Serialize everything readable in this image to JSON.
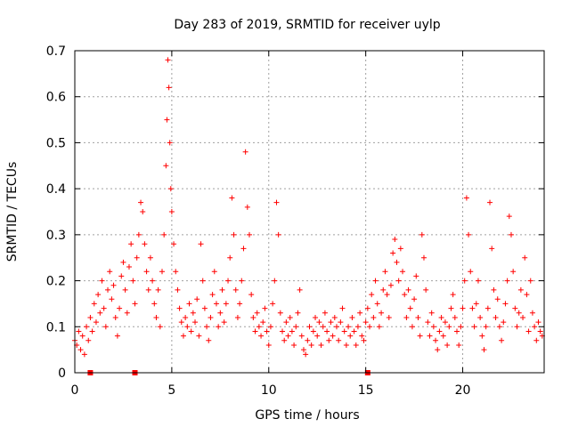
{
  "chart_data": {
    "type": "scatter",
    "title": "Day 283 of 2019, SRMTID for receiver uylp",
    "xlabel": "GPS time / hours",
    "ylabel": "SRMTID / TECUs",
    "xlim": [
      0,
      24.2
    ],
    "ylim": [
      0,
      0.7
    ],
    "x_ticks": [
      0,
      5,
      10,
      15,
      20
    ],
    "x_tick_labels": [
      "0",
      "5",
      "10",
      "15",
      "20"
    ],
    "y_ticks": [
      0,
      0.1,
      0.2,
      0.3,
      0.4,
      0.5,
      0.6,
      0.7
    ],
    "y_tick_labels": [
      "0",
      "0.1",
      "0.2",
      "0.3",
      "0.4",
      "0.5",
      "0.6",
      "0.7"
    ],
    "grid": true,
    "marker": "plus",
    "color": "#ff0000",
    "series": [
      {
        "name": "SRMTID",
        "points": [
          [
            0.0,
            0.07
          ],
          [
            0.1,
            0.06
          ],
          [
            0.2,
            0.09
          ],
          [
            0.3,
            0.05
          ],
          [
            0.4,
            0.08
          ],
          [
            0.5,
            0.04
          ],
          [
            0.6,
            0.1
          ],
          [
            0.7,
            0.07
          ],
          [
            0.8,
            0.12
          ],
          [
            0.9,
            0.09
          ],
          [
            1.0,
            0.15
          ],
          [
            1.1,
            0.11
          ],
          [
            1.2,
            0.17
          ],
          [
            1.3,
            0.13
          ],
          [
            1.4,
            0.2
          ],
          [
            1.5,
            0.14
          ],
          [
            1.6,
            0.1
          ],
          [
            1.7,
            0.18
          ],
          [
            1.8,
            0.22
          ],
          [
            1.9,
            0.16
          ],
          [
            2.0,
            0.19
          ],
          [
            2.1,
            0.12
          ],
          [
            2.2,
            0.08
          ],
          [
            2.3,
            0.14
          ],
          [
            2.4,
            0.21
          ],
          [
            2.5,
            0.24
          ],
          [
            2.6,
            0.18
          ],
          [
            2.7,
            0.13
          ],
          [
            2.8,
            0.23
          ],
          [
            2.9,
            0.28
          ],
          [
            3.0,
            0.2
          ],
          [
            3.1,
            0.15
          ],
          [
            3.2,
            0.25
          ],
          [
            3.3,
            0.3
          ],
          [
            3.4,
            0.37
          ],
          [
            3.5,
            0.35
          ],
          [
            3.6,
            0.28
          ],
          [
            3.7,
            0.22
          ],
          [
            3.8,
            0.18
          ],
          [
            3.9,
            0.25
          ],
          [
            4.0,
            0.2
          ],
          [
            4.1,
            0.15
          ],
          [
            4.2,
            0.12
          ],
          [
            4.3,
            0.18
          ],
          [
            4.4,
            0.1
          ],
          [
            4.5,
            0.22
          ],
          [
            4.6,
            0.3
          ],
          [
            4.7,
            0.45
          ],
          [
            4.75,
            0.55
          ],
          [
            4.8,
            0.68
          ],
          [
            4.85,
            0.62
          ],
          [
            4.9,
            0.5
          ],
          [
            4.95,
            0.4
          ],
          [
            5.0,
            0.35
          ],
          [
            5.1,
            0.28
          ],
          [
            5.2,
            0.22
          ],
          [
            5.3,
            0.18
          ],
          [
            5.4,
            0.14
          ],
          [
            5.5,
            0.11
          ],
          [
            5.6,
            0.08
          ],
          [
            5.7,
            0.12
          ],
          [
            5.8,
            0.1
          ],
          [
            5.9,
            0.15
          ],
          [
            6.0,
            0.09
          ],
          [
            6.1,
            0.13
          ],
          [
            6.2,
            0.11
          ],
          [
            6.3,
            0.16
          ],
          [
            6.4,
            0.08
          ],
          [
            6.5,
            0.28
          ],
          [
            6.6,
            0.2
          ],
          [
            6.7,
            0.14
          ],
          [
            6.8,
            0.1
          ],
          [
            6.9,
            0.07
          ],
          [
            7.0,
            0.12
          ],
          [
            7.1,
            0.17
          ],
          [
            7.2,
            0.22
          ],
          [
            7.3,
            0.15
          ],
          [
            7.4,
            0.1
          ],
          [
            7.5,
            0.13
          ],
          [
            7.6,
            0.18
          ],
          [
            7.7,
            0.11
          ],
          [
            7.8,
            0.15
          ],
          [
            7.9,
            0.2
          ],
          [
            8.0,
            0.25
          ],
          [
            8.1,
            0.38
          ],
          [
            8.2,
            0.3
          ],
          [
            8.3,
            0.18
          ],
          [
            8.4,
            0.12
          ],
          [
            8.5,
            0.15
          ],
          [
            8.6,
            0.2
          ],
          [
            8.7,
            0.27
          ],
          [
            8.8,
            0.48
          ],
          [
            8.9,
            0.36
          ],
          [
            9.0,
            0.3
          ],
          [
            9.1,
            0.17
          ],
          [
            9.2,
            0.12
          ],
          [
            9.3,
            0.09
          ],
          [
            9.4,
            0.13
          ],
          [
            9.5,
            0.1
          ],
          [
            9.6,
            0.08
          ],
          [
            9.7,
            0.11
          ],
          [
            9.8,
            0.14
          ],
          [
            9.9,
            0.09
          ],
          [
            10.0,
            0.06
          ],
          [
            10.1,
            0.1
          ],
          [
            10.2,
            0.15
          ],
          [
            10.3,
            0.2
          ],
          [
            10.4,
            0.37
          ],
          [
            10.5,
            0.3
          ],
          [
            10.6,
            0.13
          ],
          [
            10.7,
            0.09
          ],
          [
            10.8,
            0.07
          ],
          [
            10.9,
            0.11
          ],
          [
            11.0,
            0.08
          ],
          [
            11.1,
            0.12
          ],
          [
            11.2,
            0.09
          ],
          [
            11.3,
            0.06
          ],
          [
            11.4,
            0.1
          ],
          [
            11.5,
            0.13
          ],
          [
            11.6,
            0.18
          ],
          [
            11.7,
            0.08
          ],
          [
            11.8,
            0.05
          ],
          [
            11.9,
            0.04
          ],
          [
            12.0,
            0.07
          ],
          [
            12.1,
            0.1
          ],
          [
            12.2,
            0.06
          ],
          [
            12.3,
            0.09
          ],
          [
            12.4,
            0.12
          ],
          [
            12.5,
            0.08
          ],
          [
            12.6,
            0.11
          ],
          [
            12.7,
            0.06
          ],
          [
            12.8,
            0.1
          ],
          [
            12.9,
            0.13
          ],
          [
            13.0,
            0.09
          ],
          [
            13.1,
            0.07
          ],
          [
            13.2,
            0.11
          ],
          [
            13.3,
            0.08
          ],
          [
            13.4,
            0.12
          ],
          [
            13.5,
            0.1
          ],
          [
            13.6,
            0.07
          ],
          [
            13.7,
            0.11
          ],
          [
            13.8,
            0.14
          ],
          [
            13.9,
            0.09
          ],
          [
            14.0,
            0.06
          ],
          [
            14.1,
            0.1
          ],
          [
            14.2,
            0.08
          ],
          [
            14.3,
            0.12
          ],
          [
            14.4,
            0.09
          ],
          [
            14.5,
            0.06
          ],
          [
            14.6,
            0.1
          ],
          [
            14.7,
            0.13
          ],
          [
            14.8,
            0.08
          ],
          [
            14.9,
            0.07
          ],
          [
            15.0,
            0.11
          ],
          [
            15.1,
            0.14
          ],
          [
            15.2,
            0.1
          ],
          [
            15.3,
            0.17
          ],
          [
            15.4,
            0.12
          ],
          [
            15.5,
            0.2
          ],
          [
            15.6,
            0.15
          ],
          [
            15.7,
            0.1
          ],
          [
            15.8,
            0.13
          ],
          [
            15.9,
            0.18
          ],
          [
            16.0,
            0.22
          ],
          [
            16.1,
            0.17
          ],
          [
            16.2,
            0.12
          ],
          [
            16.3,
            0.19
          ],
          [
            16.4,
            0.26
          ],
          [
            16.5,
            0.29
          ],
          [
            16.6,
            0.24
          ],
          [
            16.7,
            0.2
          ],
          [
            16.8,
            0.27
          ],
          [
            16.9,
            0.22
          ],
          [
            17.0,
            0.17
          ],
          [
            17.1,
            0.12
          ],
          [
            17.2,
            0.18
          ],
          [
            17.3,
            0.14
          ],
          [
            17.4,
            0.1
          ],
          [
            17.5,
            0.16
          ],
          [
            17.6,
            0.21
          ],
          [
            17.7,
            0.12
          ],
          [
            17.8,
            0.08
          ],
          [
            17.9,
            0.3
          ],
          [
            18.0,
            0.25
          ],
          [
            18.1,
            0.18
          ],
          [
            18.2,
            0.11
          ],
          [
            18.3,
            0.08
          ],
          [
            18.4,
            0.13
          ],
          [
            18.5,
            0.1
          ],
          [
            18.6,
            0.07
          ],
          [
            18.7,
            0.05
          ],
          [
            18.8,
            0.09
          ],
          [
            18.9,
            0.12
          ],
          [
            19.0,
            0.08
          ],
          [
            19.1,
            0.11
          ],
          [
            19.2,
            0.06
          ],
          [
            19.3,
            0.1
          ],
          [
            19.4,
            0.14
          ],
          [
            19.5,
            0.17
          ],
          [
            19.6,
            0.12
          ],
          [
            19.7,
            0.09
          ],
          [
            19.8,
            0.06
          ],
          [
            19.9,
            0.1
          ],
          [
            20.0,
            0.14
          ],
          [
            20.1,
            0.2
          ],
          [
            20.2,
            0.38
          ],
          [
            20.3,
            0.3
          ],
          [
            20.4,
            0.22
          ],
          [
            20.5,
            0.14
          ],
          [
            20.6,
            0.1
          ],
          [
            20.7,
            0.15
          ],
          [
            20.8,
            0.2
          ],
          [
            20.9,
            0.12
          ],
          [
            21.0,
            0.08
          ],
          [
            21.1,
            0.05
          ],
          [
            21.2,
            0.1
          ],
          [
            21.3,
            0.14
          ],
          [
            21.4,
            0.37
          ],
          [
            21.5,
            0.27
          ],
          [
            21.6,
            0.18
          ],
          [
            21.7,
            0.12
          ],
          [
            21.8,
            0.16
          ],
          [
            21.9,
            0.1
          ],
          [
            22.0,
            0.07
          ],
          [
            22.1,
            0.11
          ],
          [
            22.2,
            0.15
          ],
          [
            22.3,
            0.2
          ],
          [
            22.4,
            0.34
          ],
          [
            22.5,
            0.3
          ],
          [
            22.6,
            0.22
          ],
          [
            22.7,
            0.14
          ],
          [
            22.8,
            0.1
          ],
          [
            22.9,
            0.13
          ],
          [
            23.0,
            0.18
          ],
          [
            23.1,
            0.12
          ],
          [
            23.2,
            0.25
          ],
          [
            23.3,
            0.17
          ],
          [
            23.4,
            0.09
          ],
          [
            23.5,
            0.2
          ],
          [
            23.6,
            0.13
          ],
          [
            23.7,
            0.1
          ],
          [
            23.8,
            0.07
          ],
          [
            23.9,
            0.11
          ],
          [
            24.0,
            0.09
          ],
          [
            24.1,
            0.08
          ]
        ]
      }
    ],
    "gap_markers_x": [
      0.8,
      3.1,
      15.1
    ]
  }
}
